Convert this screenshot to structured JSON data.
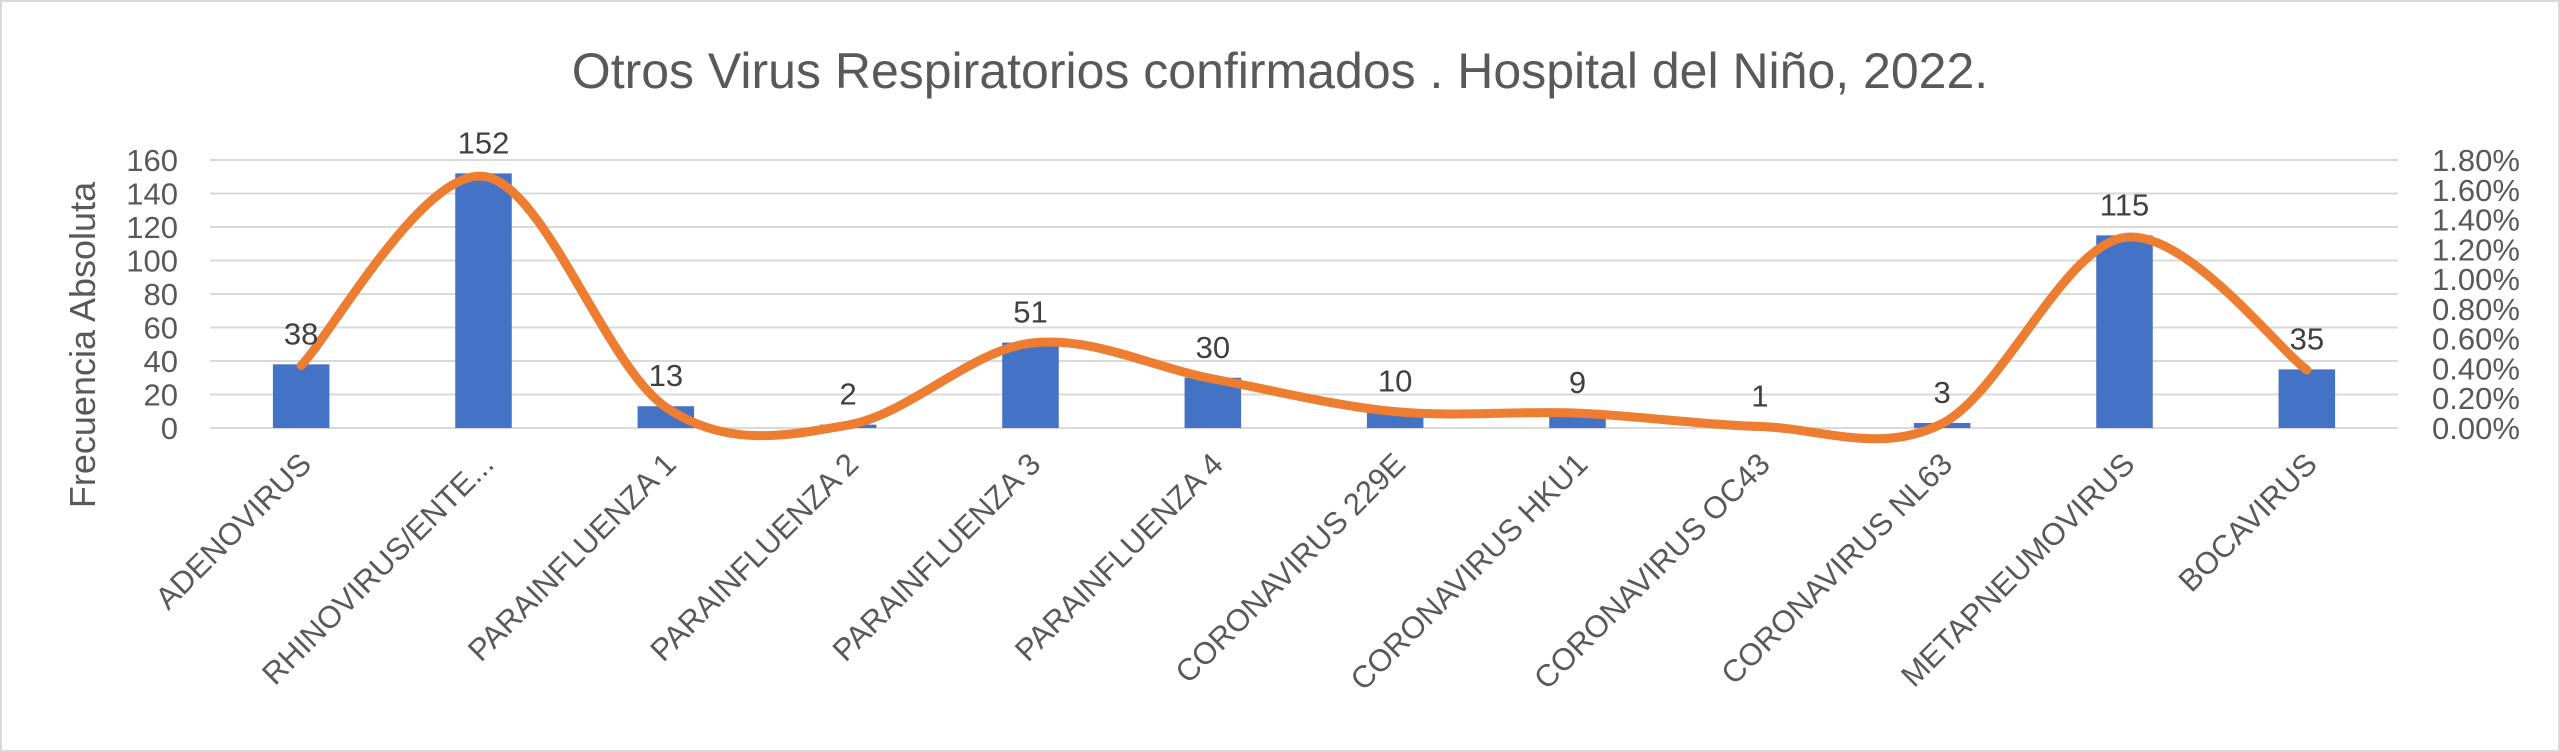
{
  "chart_data": {
    "type": "bar",
    "title": "Otros Virus Respiratorios confirmados . Hospital del Niño, 2022.",
    "ylabel": "Frecuencia Absoluta",
    "y2label": "",
    "categories": [
      "ADENOVIRUS",
      "RHINOVIRUS/ENTE...",
      "PARAINFLUENZA 1",
      "PARAINFLUENZA 2",
      "PARAINFLUENZA 3",
      "PARAINFLUENZA 4",
      "CORONAVIRUS 229E",
      "CORONAVIRUS HKU1",
      "CORONAVIRUS OC43",
      "CORONAVIRUS NL63",
      "METAPNEUMOVIRUS",
      "BOCAVIRUS"
    ],
    "series": [
      {
        "type": "bar",
        "axis": "left",
        "color": "#4472c4",
        "values": [
          38,
          152,
          13,
          2,
          51,
          30,
          10,
          9,
          1,
          3,
          115,
          35
        ],
        "data_labels": [
          "38",
          "152",
          "13",
          "2",
          "51",
          "30",
          "10",
          "9",
          "1",
          "3",
          "115",
          "35"
        ]
      },
      {
        "type": "line",
        "axis": "right",
        "smooth": true,
        "color": "#ed7d31",
        "values": [
          0.0042,
          0.0169,
          0.0014,
          0.0002,
          0.0057,
          0.0033,
          0.0011,
          0.001,
          0.0001,
          0.0003,
          0.0128,
          0.0039
        ]
      }
    ],
    "ylim": [
      0,
      160
    ],
    "yticks": [
      "0",
      "20",
      "40",
      "60",
      "80",
      "100",
      "120",
      "140",
      "160"
    ],
    "y2lim": [
      0,
      0.018
    ],
    "y2ticks": [
      "0.00%",
      "0.20%",
      "0.40%",
      "0.60%",
      "0.80%",
      "1.00%",
      "1.20%",
      "1.40%",
      "1.60%",
      "1.80%"
    ],
    "grid": true,
    "legend": "none"
  }
}
